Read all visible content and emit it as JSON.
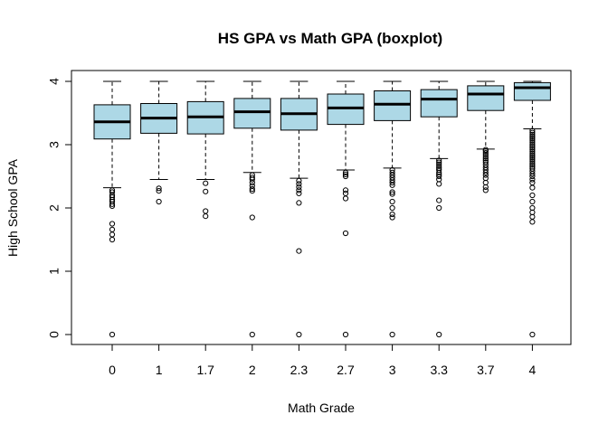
{
  "chart_data": {
    "type": "boxplot",
    "title": "HS GPA vs Math GPA (boxplot)",
    "xlabel": "Math Grade",
    "ylabel": "High School GPA",
    "categories": [
      "0",
      "1",
      "1.7",
      "2",
      "2.3",
      "2.7",
      "3",
      "3.3",
      "3.7",
      "4"
    ],
    "ylim": [
      0,
      4
    ],
    "yticks": [
      0,
      1,
      2,
      3,
      4
    ],
    "box_color": "#add8e6",
    "grid": false,
    "boxes": [
      {
        "category": "0",
        "lower_whisker": 2.32,
        "q1": 3.09,
        "median": 3.36,
        "q3": 3.63,
        "upper_whisker": 4.0,
        "outliers": [
          2.28,
          2.25,
          2.2,
          2.17,
          2.13,
          2.1,
          2.06,
          2.03,
          1.75,
          1.66,
          1.58,
          1.5,
          0.0
        ]
      },
      {
        "category": "1",
        "lower_whisker": 2.45,
        "q1": 3.18,
        "median": 3.42,
        "q3": 3.65,
        "upper_whisker": 4.0,
        "outliers": [
          2.31,
          2.27,
          2.1
        ]
      },
      {
        "category": "1.7",
        "lower_whisker": 2.45,
        "q1": 3.17,
        "median": 3.44,
        "q3": 3.68,
        "upper_whisker": 4.0,
        "outliers": [
          2.39,
          2.26,
          1.95,
          1.87
        ]
      },
      {
        "category": "2",
        "lower_whisker": 2.56,
        "q1": 3.26,
        "median": 3.52,
        "q3": 3.73,
        "upper_whisker": 4.0,
        "outliers": [
          2.52,
          2.48,
          2.45,
          2.4,
          2.35,
          2.3,
          2.27,
          1.85,
          0.0
        ]
      },
      {
        "category": "2.3",
        "lower_whisker": 2.47,
        "q1": 3.23,
        "median": 3.49,
        "q3": 3.73,
        "upper_whisker": 4.0,
        "outliers": [
          2.43,
          2.38,
          2.33,
          2.28,
          2.23,
          2.08,
          1.32,
          0.0
        ]
      },
      {
        "category": "2.7",
        "lower_whisker": 2.6,
        "q1": 3.32,
        "median": 3.58,
        "q3": 3.8,
        "upper_whisker": 4.0,
        "outliers": [
          2.56,
          2.53,
          2.5,
          2.28,
          2.23,
          2.15,
          1.6,
          0.0
        ]
      },
      {
        "category": "3",
        "lower_whisker": 2.63,
        "q1": 3.38,
        "median": 3.64,
        "q3": 3.85,
        "upper_whisker": 4.0,
        "outliers": [
          2.6,
          2.56,
          2.52,
          2.48,
          2.44,
          2.4,
          2.36,
          2.25,
          2.22,
          2.1,
          2.0,
          1.9,
          1.85,
          0.0
        ]
      },
      {
        "category": "3.3",
        "lower_whisker": 2.78,
        "q1": 3.44,
        "median": 3.72,
        "q3": 3.87,
        "upper_whisker": 4.0,
        "outliers": [
          2.75,
          2.72,
          2.69,
          2.66,
          2.63,
          2.6,
          2.56,
          2.53,
          2.5,
          2.45,
          2.38,
          2.12,
          2.0,
          0.0
        ]
      },
      {
        "category": "3.7",
        "lower_whisker": 2.93,
        "q1": 3.54,
        "median": 3.8,
        "q3": 3.93,
        "upper_whisker": 4.0,
        "outliers": [
          2.92,
          2.9,
          2.87,
          2.84,
          2.81,
          2.78,
          2.75,
          2.72,
          2.68,
          2.64,
          2.6,
          2.56,
          2.52,
          2.47,
          2.4,
          2.33,
          2.28
        ]
      },
      {
        "category": "4",
        "lower_whisker": 3.25,
        "q1": 3.7,
        "median": 3.9,
        "q3": 3.98,
        "upper_whisker": 4.0,
        "outliers": [
          3.22,
          3.19,
          3.16,
          3.13,
          3.1,
          3.07,
          3.04,
          3.01,
          2.98,
          2.95,
          2.92,
          2.89,
          2.86,
          2.83,
          2.8,
          2.77,
          2.74,
          2.71,
          2.68,
          2.65,
          2.62,
          2.58,
          2.54,
          2.5,
          2.45,
          2.4,
          2.32,
          2.2,
          2.1,
          2.0,
          1.93,
          1.86,
          1.78,
          0.0
        ]
      }
    ]
  }
}
